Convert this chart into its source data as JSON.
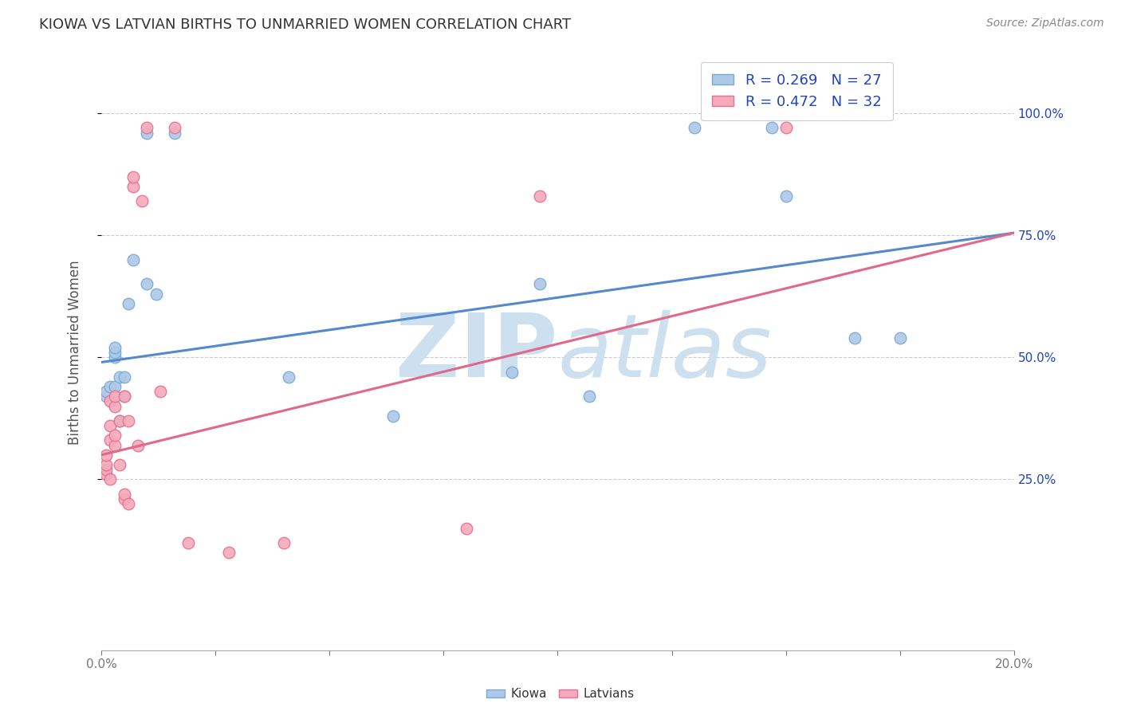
{
  "title": "KIOWA VS LATVIAN BIRTHS TO UNMARRIED WOMEN CORRELATION CHART",
  "source": "Source: ZipAtlas.com",
  "ylabel": "Births to Unmarried Women",
  "y_ticks": [
    0.25,
    0.5,
    0.75,
    1.0
  ],
  "y_tick_labels": [
    "25.0%",
    "50.0%",
    "75.0%",
    "100.0%"
  ],
  "xlim": [
    0.0,
    0.2
  ],
  "ylim": [
    -0.1,
    1.12
  ],
  "kiowa_R": 0.269,
  "kiowa_N": 27,
  "latvian_R": 0.472,
  "latvian_N": 32,
  "kiowa_color": "#adc8e8",
  "latvian_color": "#f5aabb",
  "kiowa_edge_color": "#7aaad0",
  "latvian_edge_color": "#e87090",
  "line_kiowa_color": "#5588cc",
  "line_latvian_color": "#e06888",
  "legend_text_color": "#2244bb",
  "background_color": "#ffffff",
  "watermark_color": "#cce0f0",
  "kiowa_x": [
    0.001,
    0.001,
    0.002,
    0.003,
    0.003,
    0.003,
    0.003,
    0.004,
    0.004,
    0.005,
    0.005,
    0.006,
    0.007,
    0.01,
    0.01,
    0.012,
    0.016,
    0.041,
    0.064,
    0.09,
    0.096,
    0.107,
    0.13,
    0.147,
    0.15,
    0.165,
    0.175
  ],
  "kiowa_y": [
    0.42,
    0.43,
    0.44,
    0.5,
    0.51,
    0.52,
    0.44,
    0.46,
    0.37,
    0.42,
    0.46,
    0.61,
    0.7,
    0.65,
    0.96,
    0.63,
    0.96,
    0.46,
    0.38,
    0.47,
    0.65,
    0.42,
    0.97,
    0.97,
    0.83,
    0.54,
    0.54
  ],
  "latvian_x": [
    0.001,
    0.001,
    0.001,
    0.001,
    0.002,
    0.002,
    0.002,
    0.002,
    0.003,
    0.003,
    0.003,
    0.003,
    0.004,
    0.004,
    0.005,
    0.005,
    0.005,
    0.006,
    0.006,
    0.007,
    0.007,
    0.008,
    0.009,
    0.01,
    0.013,
    0.016,
    0.019,
    0.028,
    0.04,
    0.08,
    0.096,
    0.15
  ],
  "latvian_y": [
    0.26,
    0.27,
    0.28,
    0.3,
    0.25,
    0.33,
    0.36,
    0.41,
    0.32,
    0.34,
    0.4,
    0.42,
    0.28,
    0.37,
    0.21,
    0.22,
    0.42,
    0.2,
    0.37,
    0.85,
    0.87,
    0.32,
    0.82,
    0.97,
    0.43,
    0.97,
    0.12,
    0.1,
    0.12,
    0.15,
    0.83,
    0.97
  ],
  "kiowa_line_x": [
    0.0,
    0.2
  ],
  "kiowa_line_y": [
    0.49,
    0.755
  ],
  "latvian_line_x": [
    0.0,
    0.2
  ],
  "latvian_line_y": [
    0.3,
    0.755
  ],
  "x_ticks": [
    0.0,
    0.025,
    0.05,
    0.075,
    0.1,
    0.125,
    0.15,
    0.175,
    0.2
  ]
}
